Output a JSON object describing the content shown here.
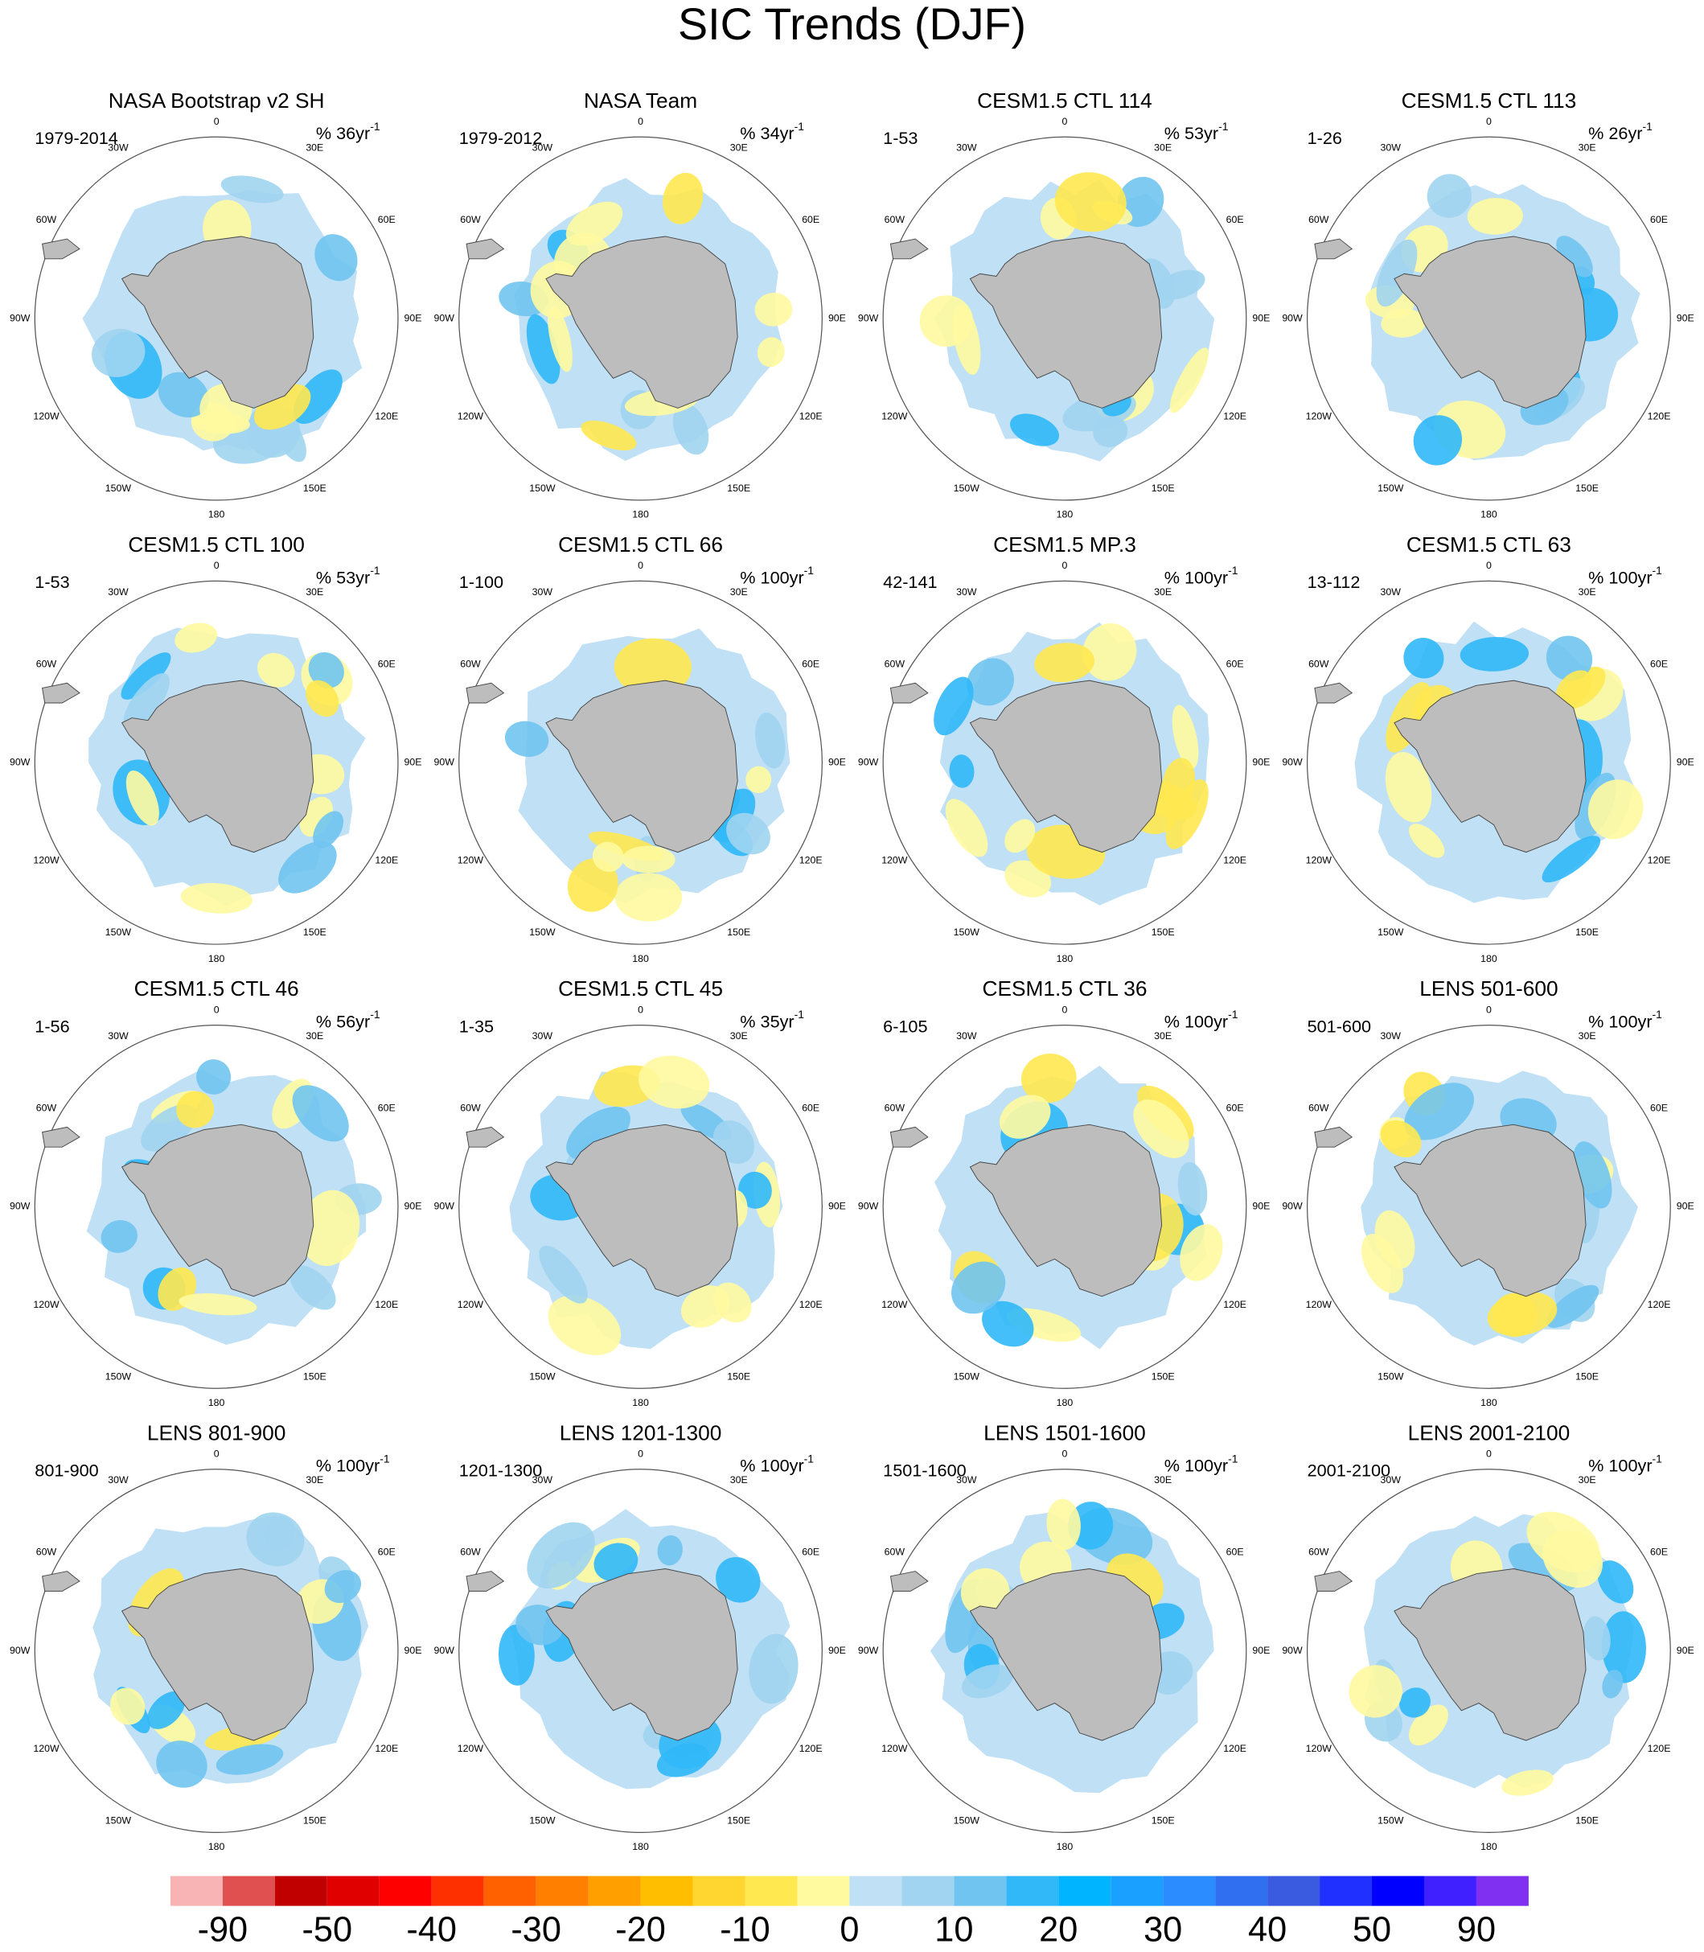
{
  "chart_data": {
    "type": "polar-map-grid",
    "title": "SIC Trends (DJF)",
    "map_labels": [
      "0",
      "30E",
      "60E",
      "90E",
      "120E",
      "150E",
      "180",
      "150W",
      "120W",
      "90W",
      "60W",
      "30W"
    ],
    "panels": [
      {
        "title": "NASA Bootstrap v2 SH",
        "period": "1979-2014",
        "units": "% 36yr",
        "units_sup": "-1"
      },
      {
        "title": "NASA Team",
        "period": "1979-2012",
        "units": "% 34yr",
        "units_sup": "-1"
      },
      {
        "title": "CESM1.5 CTL 114",
        "period": "1-53",
        "units": "% 53yr",
        "units_sup": "-1"
      },
      {
        "title": "CESM1.5 CTL 113",
        "period": "1-26",
        "units": "% 26yr",
        "units_sup": "-1"
      },
      {
        "title": "CESM1.5 CTL 100",
        "period": "1-53",
        "units": "% 53yr",
        "units_sup": "-1"
      },
      {
        "title": "CESM1.5 CTL 66",
        "period": "1-100",
        "units": "% 100yr",
        "units_sup": "-1"
      },
      {
        "title": "CESM1.5 MP.3",
        "period": "42-141",
        "units": "% 100yr",
        "units_sup": "-1"
      },
      {
        "title": "CESM1.5 CTL 63",
        "period": "13-112",
        "units": "% 100yr",
        "units_sup": "-1"
      },
      {
        "title": "CESM1.5 CTL 46",
        "period": "1-56",
        "units": "% 56yr",
        "units_sup": "-1"
      },
      {
        "title": "CESM1.5 CTL 45",
        "period": "1-35",
        "units": "% 35yr",
        "units_sup": "-1"
      },
      {
        "title": "CESM1.5 CTL 36",
        "period": "6-105",
        "units": "% 100yr",
        "units_sup": "-1"
      },
      {
        "title": "LENS 501-600",
        "period": "501-600",
        "units": "% 100yr",
        "units_sup": "-1"
      },
      {
        "title": "LENS 801-900",
        "period": "801-900",
        "units": "% 100yr",
        "units_sup": "-1"
      },
      {
        "title": "LENS 1201-1300",
        "period": "1201-1300",
        "units": "% 100yr",
        "units_sup": "-1"
      },
      {
        "title": "LENS 1501-1600",
        "period": "1501-1600",
        "units": "% 100yr",
        "units_sup": "-1"
      },
      {
        "title": "LENS 2001-2100",
        "period": "2001-2100",
        "units": "% 100yr",
        "units_sup": "-1"
      }
    ],
    "colorbar": {
      "levels": [
        -90,
        -70,
        -50,
        -45,
        -40,
        -35,
        -30,
        -25,
        -20,
        -15,
        -10,
        -5,
        0,
        5,
        10,
        15,
        20,
        25,
        30,
        35,
        40,
        45,
        50,
        70,
        90
      ],
      "ticks": [
        -90,
        -50,
        -40,
        -30,
        -20,
        -10,
        0,
        10,
        20,
        30,
        40,
        50,
        90
      ],
      "colors": [
        "#f8b4b4",
        "#e05050",
        "#c00000",
        "#e00000",
        "#ff0000",
        "#ff3000",
        "#ff6000",
        "#ff8000",
        "#ffa000",
        "#ffbf00",
        "#ffd530",
        "#ffe850",
        "#fffaa0",
        "#c0e0f5",
        "#a0d4f0",
        "#70c4f0",
        "#30b8f8",
        "#00b4ff",
        "#1aa0ff",
        "#2a8cff",
        "#3070f0",
        "#3a5ae0",
        "#2030ff",
        "#0000ff",
        "#4020ff",
        "#8030f0"
      ]
    }
  }
}
